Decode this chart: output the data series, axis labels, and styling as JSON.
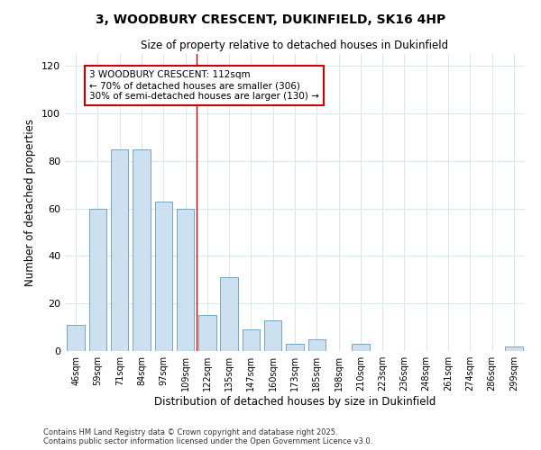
{
  "title_line1": "3, WOODBURY CRESCENT, DUKINFIELD, SK16 4HP",
  "title_line2": "Size of property relative to detached houses in Dukinfield",
  "xlabel": "Distribution of detached houses by size in Dukinfield",
  "ylabel": "Number of detached properties",
  "categories": [
    "46sqm",
    "59sqm",
    "71sqm",
    "84sqm",
    "97sqm",
    "109sqm",
    "122sqm",
    "135sqm",
    "147sqm",
    "160sqm",
    "173sqm",
    "185sqm",
    "198sqm",
    "210sqm",
    "223sqm",
    "236sqm",
    "248sqm",
    "261sqm",
    "274sqm",
    "286sqm",
    "299sqm"
  ],
  "values": [
    11,
    60,
    85,
    85,
    63,
    60,
    15,
    31,
    9,
    13,
    3,
    5,
    0,
    3,
    0,
    0,
    0,
    0,
    0,
    0,
    2
  ],
  "bar_color": "#cce0f0",
  "bar_edge_color": "#6699bb",
  "background_color": "#ffffff",
  "grid_color": "#d8e8f0",
  "vline_x": 5.5,
  "vline_color": "#cc0000",
  "annotation_text": "3 WOODBURY CRESCENT: 112sqm\n← 70% of detached houses are smaller (306)\n30% of semi-detached houses are larger (130) →",
  "annotation_box_color": "#ffffff",
  "annotation_box_edge": "#cc0000",
  "ylim": [
    0,
    125
  ],
  "yticks": [
    0,
    20,
    40,
    60,
    80,
    100,
    120
  ],
  "footer_line1": "Contains HM Land Registry data © Crown copyright and database right 2025.",
  "footer_line2": "Contains public sector information licensed under the Open Government Licence v3.0."
}
